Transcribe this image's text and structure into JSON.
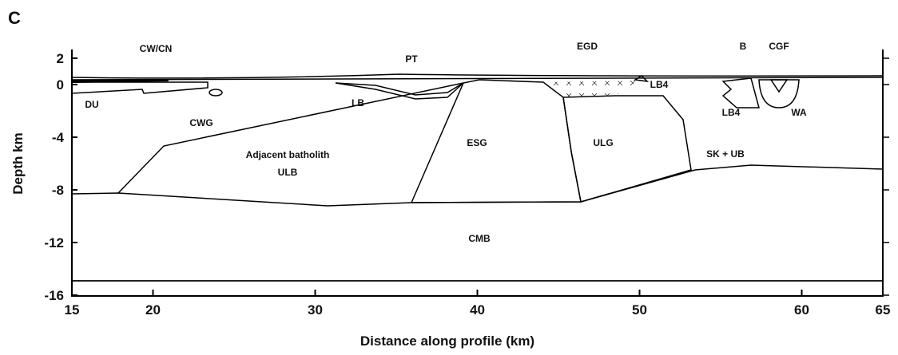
{
  "panel": "C",
  "axes": {
    "x": {
      "label": "Distance along profile (km)",
      "lim": [
        15,
        65
      ],
      "ticks": [
        15,
        20,
        30,
        40,
        50,
        60,
        65
      ]
    },
    "y": {
      "label": "Depth km",
      "lim": [
        2,
        -16
      ],
      "ticks": [
        2,
        0,
        -4,
        -8,
        -12,
        -16
      ]
    }
  },
  "labels": [
    "CW/CN",
    "PT",
    "EGD",
    "B",
    "CGF",
    "DU",
    "CWG",
    "LB",
    "LB4",
    "LB4",
    "WA",
    "ESG",
    "ULG",
    "Adjacent batholith",
    "ULB",
    "SK + UB",
    "CMB"
  ]
}
